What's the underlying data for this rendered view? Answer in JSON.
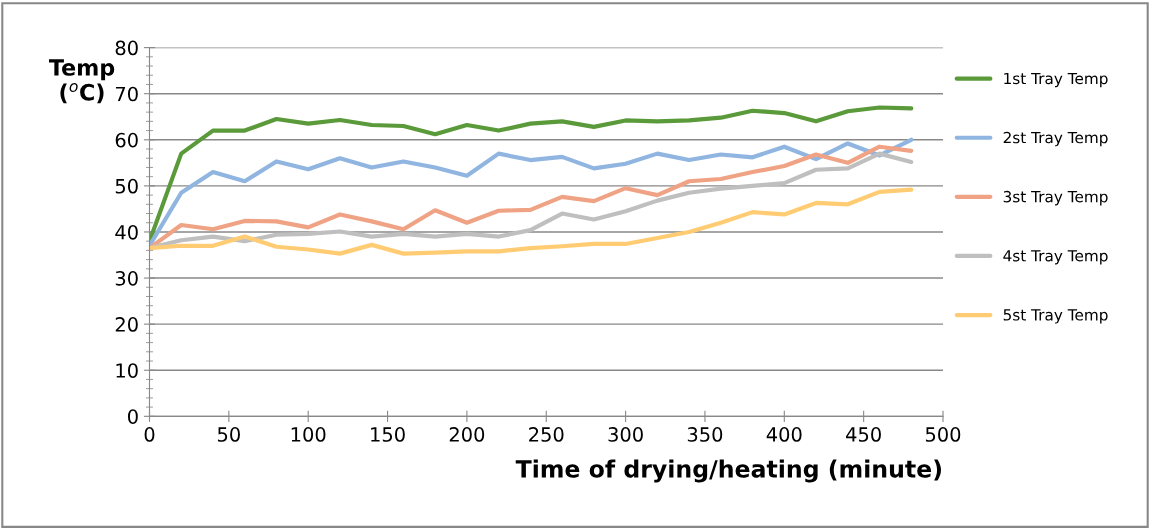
{
  "chart_data": {
    "type": "line",
    "xlabel": "Time of drying/heating (minute)",
    "ylabel": "Temp\n($^{o}$C)",
    "x": [
      0,
      20,
      40,
      60,
      80,
      100,
      120,
      140,
      160,
      180,
      200,
      220,
      240,
      260,
      280,
      300,
      320,
      340,
      360,
      380,
      400,
      420,
      440,
      460,
      480
    ],
    "series": [
      {
        "name": "1st Tray Temp",
        "color": "#5b9a3a",
        "values": [
          38,
          57,
          62,
          62,
          64.5,
          63.5,
          64.3,
          63.2,
          63,
          61.2,
          63.2,
          62,
          63.5,
          64,
          62.8,
          64.2,
          64,
          64.2,
          64.8,
          66.3,
          65.8,
          64,
          66.2,
          67,
          66.8
        ]
      },
      {
        "name": "2st Tray Temp",
        "color": "#8fb5e0",
        "values": [
          37,
          48.5,
          53,
          51,
          55.3,
          53.6,
          56,
          54,
          55.3,
          54,
          52.2,
          57,
          55.6,
          56.3,
          53.8,
          54.8,
          57,
          55.6,
          56.8,
          56.2,
          58.5,
          55.8,
          59.2,
          56.6,
          60
        ]
      },
      {
        "name": "3st Tray Temp",
        "color": "#f0a384",
        "values": [
          36.5,
          41.5,
          40.6,
          42.4,
          42.3,
          41,
          43.8,
          42.3,
          40.6,
          44.7,
          42,
          44.6,
          44.8,
          47.6,
          46.7,
          49.5,
          48,
          51,
          51.5,
          53,
          54.3,
          56.8,
          55,
          58.5,
          57.6
        ]
      },
      {
        "name": "4st Tray Temp",
        "color": "#bfbfbf",
        "values": [
          36.5,
          38.2,
          39,
          38,
          39.4,
          39.6,
          40.1,
          39,
          39.6,
          39,
          39.6,
          39,
          40.4,
          44,
          42.7,
          44.5,
          46.8,
          48.5,
          49.4,
          50,
          50.6,
          53.5,
          53.8,
          57,
          55.2
        ]
      },
      {
        "name": "5st Tray Temp",
        "color": "#ffcc73",
        "values": [
          36.5,
          37,
          37,
          39,
          36.8,
          36.2,
          35.3,
          37.2,
          35.3,
          35.5,
          35.8,
          35.8,
          36.5,
          36.9,
          37.4,
          37.4,
          38.7,
          40,
          42,
          44.3,
          43.8,
          46.3,
          46,
          48.7,
          49.2
        ]
      }
    ],
    "xlim": [
      0,
      500
    ],
    "xticks": [
      0,
      50,
      100,
      150,
      200,
      250,
      300,
      350,
      400,
      450,
      500
    ],
    "ylim": [
      0,
      80
    ],
    "yticks": [
      0,
      10,
      20,
      30,
      40,
      50,
      60,
      70,
      80
    ],
    "grid": "y",
    "legend": "right",
    "marker": "none",
    "line_style": "solid"
  }
}
